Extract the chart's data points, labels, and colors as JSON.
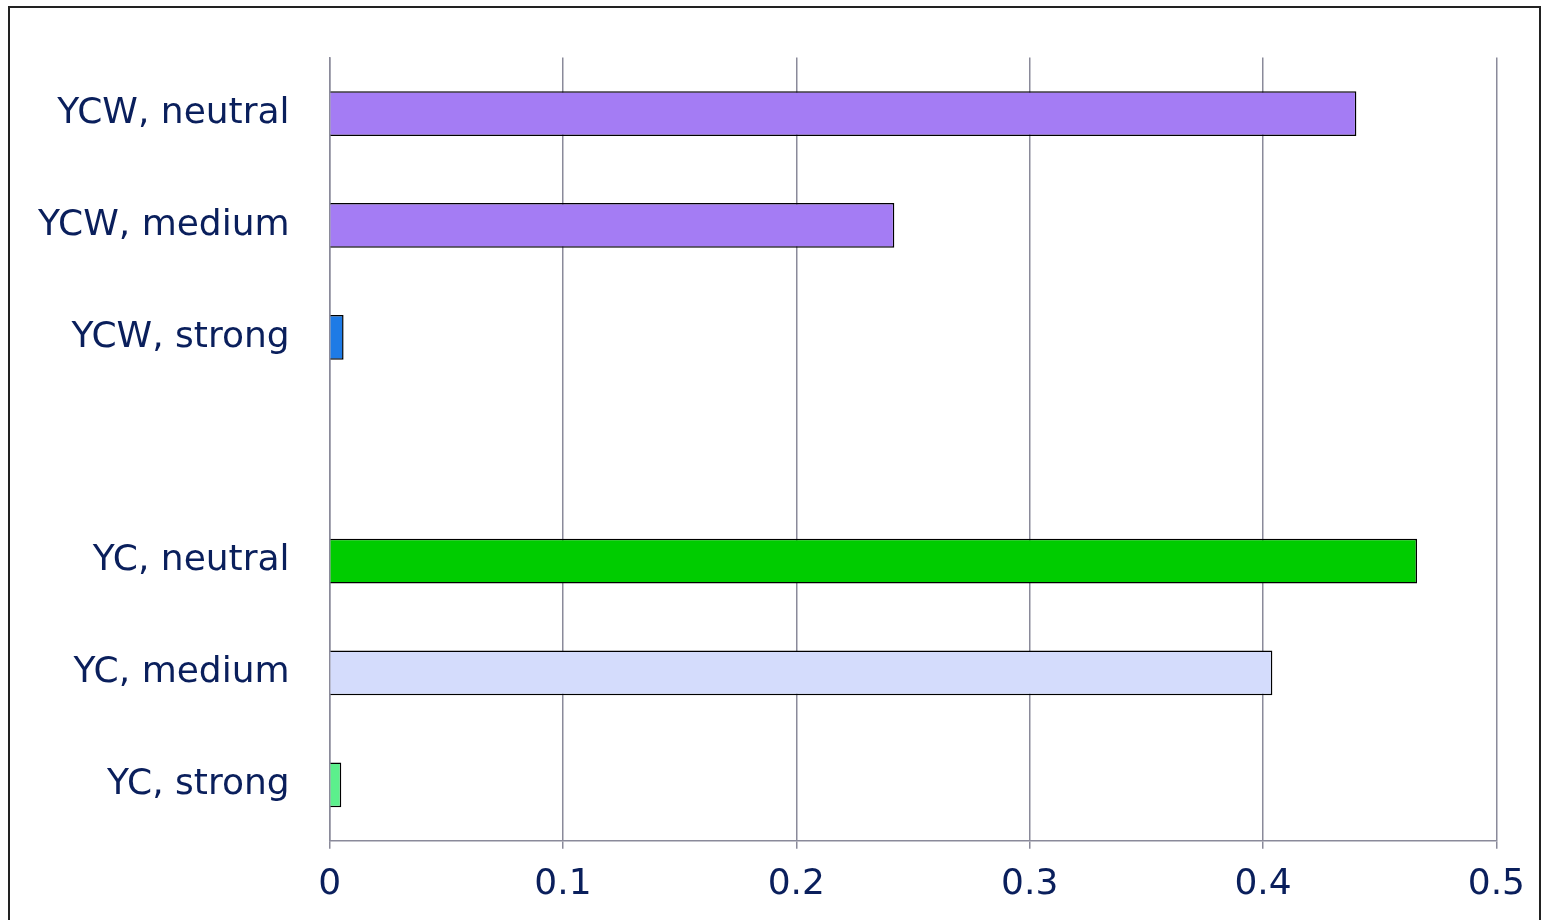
{
  "chart_data": {
    "type": "bar",
    "orientation": "horizontal",
    "categories": [
      "YCW, neutral",
      "YCW, medium",
      "YCW, strong",
      null,
      "YC, neutral",
      "YC, medium",
      "YC, strong"
    ],
    "values": [
      0.44,
      0.242,
      0.006,
      null,
      0.466,
      0.404,
      0.005
    ],
    "colors": [
      "#a47cf4",
      "#a47cf4",
      "#1e7be6",
      "#000000",
      "#00cc00",
      "#d4dcfc",
      "#5cf08c"
    ],
    "xlim": [
      0,
      0.5
    ],
    "xticks": [
      0,
      0.1,
      0.2,
      0.3,
      0.4,
      0.5
    ],
    "grid": "x",
    "legend": false
  }
}
